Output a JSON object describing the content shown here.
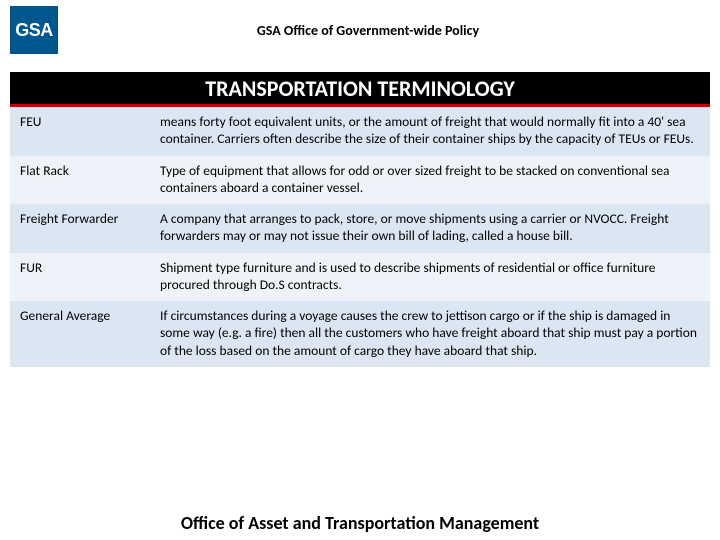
{
  "colors": {
    "logo_bg": "#00578e",
    "title_band_bg": "#000000",
    "title_band_border": "#c00000",
    "row_odd_bg": "#dce6f2",
    "row_even_bg": "#eef3fa",
    "text": "#000000"
  },
  "typography": {
    "header_title_size_pt": 11,
    "main_title_size_pt": 17,
    "body_size_pt": 10,
    "footer_size_pt": 14,
    "font_family": "Calibri"
  },
  "header": {
    "logo_text": "GSA",
    "title": "GSA Office of Government-wide Policy"
  },
  "main_title": "TRANSPORTATION TERMINOLOGY",
  "terms": [
    {
      "term": "FEU",
      "definition": "means forty foot equivalent units, or the amount of freight that would normally fit into a 40' sea container.  Carriers often describe the size of their container ships by the capacity of TEUs or FEUs."
    },
    {
      "term": "Flat Rack",
      "definition": "Type of equipment that allows for odd or over sized freight to be stacked on conventional sea containers aboard a container vessel."
    },
    {
      "term": "Freight Forwarder",
      "definition": "A company that arranges to pack, store, or move shipments using a carrier or NVOCC.   Freight forwarders may or may not issue their own bill of lading, called a house bill."
    },
    {
      "term": "FUR",
      "definition": "Shipment type furniture and is used to describe shipments of residential or office furniture procured through Do.S contracts."
    },
    {
      "term": "General Average",
      "definition": "If circumstances during a voyage causes the crew to jettison cargo or if the ship is damaged in some way (e.g. a fire) then all the customers who have freight aboard that ship must pay a portion of the loss based on the amount of cargo they have aboard that ship."
    }
  ],
  "footer_text": "Office of Asset and Transportation Management"
}
